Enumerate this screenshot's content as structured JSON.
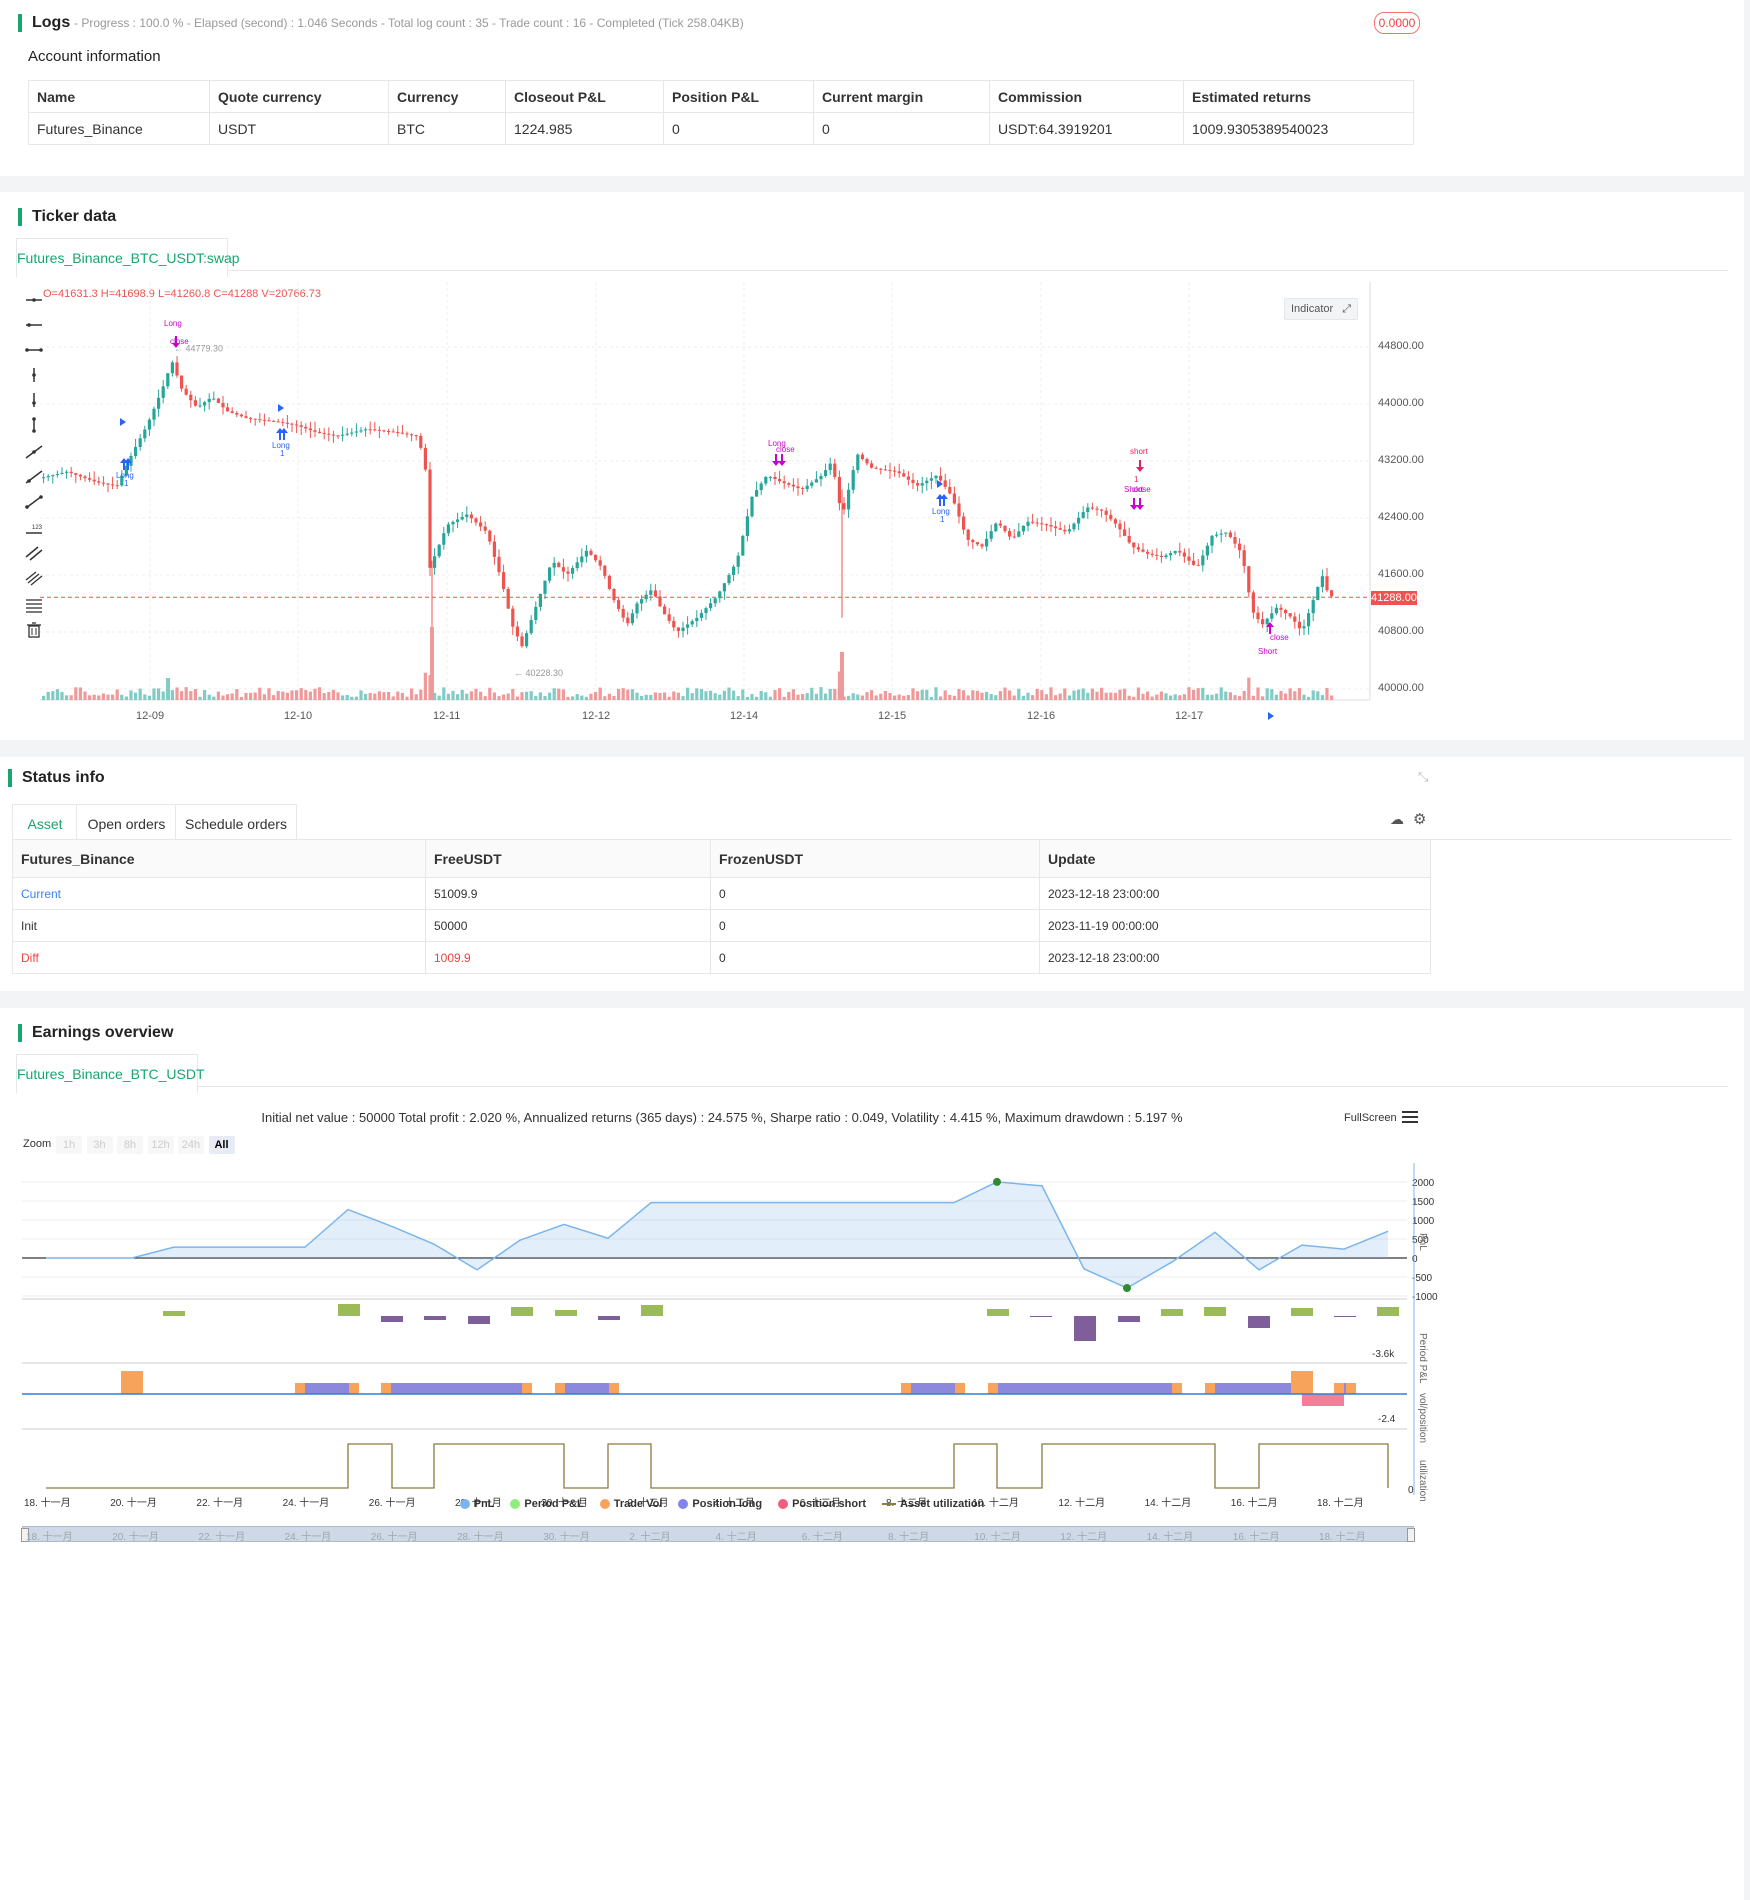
{
  "logs": {
    "title": "Logs",
    "summary": "- Progress : 100.0 % - Elapsed (second) : 1.046  Seconds - Total log count : 35 - Trade count : 16 - Completed (Tick 258.04KB)",
    "badge": "0.0000",
    "account_title": "Account information",
    "headers": [
      "Name",
      "Quote currency",
      "Currency",
      "Closeout P&L",
      "Position P&L",
      "Current margin",
      "Commission",
      "Estimated returns"
    ],
    "row": [
      "Futures_Binance",
      "USDT",
      "BTC",
      "1224.985",
      "0",
      "0",
      "USDT:64.3919201",
      "1009.9305389540023"
    ]
  },
  "ticker": {
    "title": "Ticker data",
    "tab": "Futures_Binance_BTC_USDT:swap",
    "ohlc": "O=41631.3 H=41698.9 L=41260.8 C=41288 V=20766.73",
    "indicator_btn": "Indicator",
    "price_ticks": [
      "44800.00",
      "44000.00",
      "43200.00",
      "42400.00",
      "41600.00",
      "40800.00",
      "40000.00"
    ],
    "last_price": "41288.00",
    "date_ticks": [
      "12-09",
      "12-10",
      "12-11",
      "12-12",
      "12-14",
      "12-15",
      "12-16",
      "12-17"
    ],
    "high_label": "44779.30",
    "low_label": "40228.30",
    "markers": {
      "long": "Long",
      "close": "close",
      "short_lower": "short",
      "short": "Short",
      "one": "1"
    }
  },
  "status": {
    "title": "Status info",
    "tabs": [
      "Asset",
      "Open orders",
      "Schedule orders"
    ],
    "headers": [
      "Futures_Binance",
      "FreeUSDT",
      "FrozenUSDT",
      "Update"
    ],
    "rows": [
      [
        "Current",
        "51009.9",
        "0",
        "2023-12-18 23:00:00"
      ],
      [
        "Init",
        "50000",
        "0",
        "2023-11-19 00:00:00"
      ],
      [
        "Diff",
        "1009.9",
        "0",
        "2023-12-18 23:00:00"
      ]
    ],
    "colors": {
      "current": "#3b82f6",
      "diff": "#ef4444"
    }
  },
  "earnings": {
    "title": "Earnings overview",
    "tab": "Futures_Binance_BTC_USDT",
    "summary": "Initial net value : 50000 Total profit : 2.020 %, Annualized returns (365 days) : 24.575 %, Sharpe ratio : 0.049, Volatility : 4.415 %, Maximum drawdown : 5.197 %",
    "fullscreen": "FullScreen",
    "zoom_label": "Zoom",
    "zoom_options": [
      "1h",
      "3h",
      "8h",
      "12h",
      "24h",
      "All"
    ],
    "pnl_ticks": [
      "2000",
      "1500",
      "1000",
      "500",
      "0",
      "-500",
      "-1000"
    ],
    "period_tick": "-3.6k",
    "vol_tick": "-2.4",
    "util_tick": "0",
    "axis_names": {
      "pnl": "PnL",
      "period": "Period P&L",
      "vol": "vol/position",
      "util": "utilization"
    },
    "date_ticks": [
      "18. 十一月",
      "20. 十一月",
      "22. 十一月",
      "24. 十一月",
      "26. 十一月",
      "28. 十一月",
      "30. 十一月",
      "2. 十二月",
      "4. 十二月",
      "6. 十二月",
      "8. 十二月",
      "10. 十二月",
      "12. 十二月",
      "14. 十二月",
      "16. 十二月",
      "18. 十二月"
    ],
    "legend": [
      "PnL",
      "Period P&L",
      "Trade Vol",
      "Position long",
      "Position short",
      "Asset utilization"
    ],
    "legend_colors": [
      "#7cb5ec",
      "#90ed7d",
      "#f7a35c",
      "#8085e9",
      "#f15c80",
      "#8d7a3f"
    ]
  }
}
